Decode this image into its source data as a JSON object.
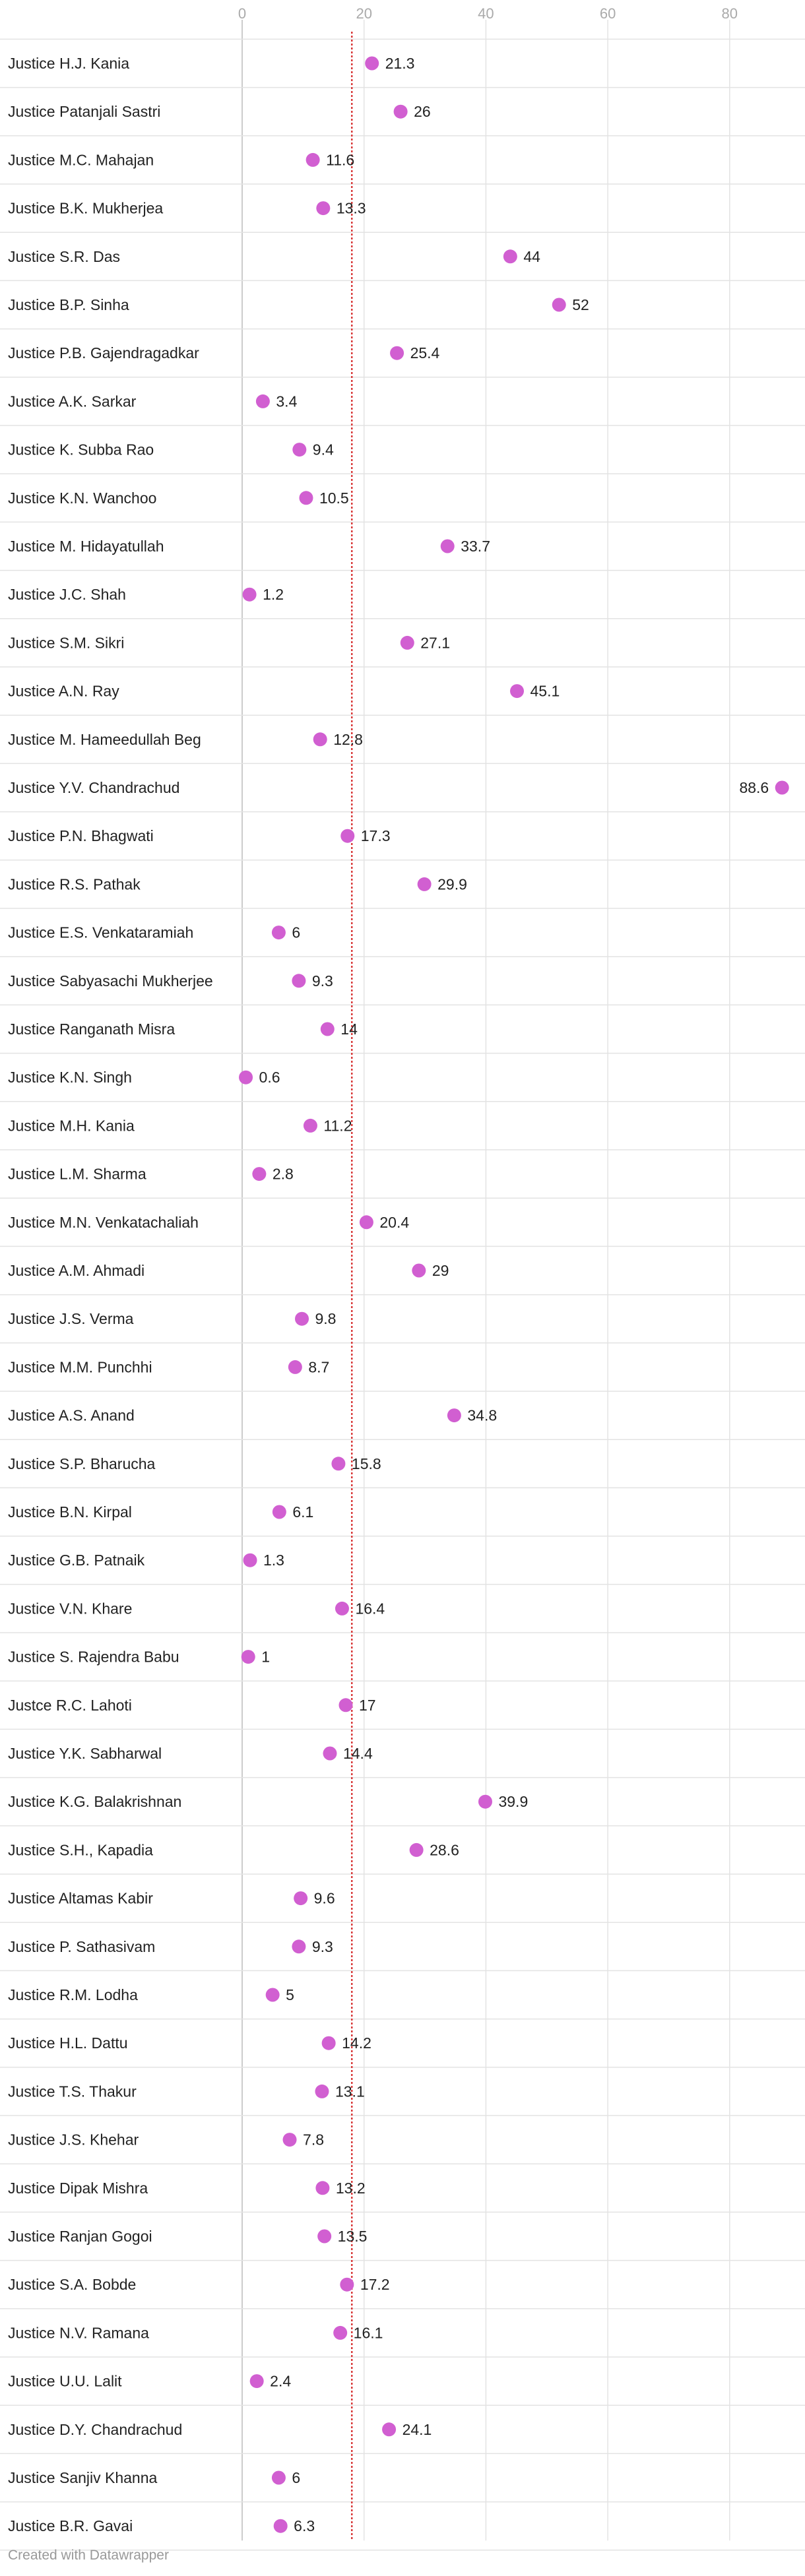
{
  "chart_data": {
    "type": "scatter",
    "title": "",
    "xlabel": "",
    "ylabel": "",
    "xlim": [
      0,
      90
    ],
    "x_ticks": [
      0,
      20,
      40,
      60,
      80
    ],
    "reference_line": 18,
    "grid": true,
    "categories": [
      "Justice H.J. Kania",
      "Justice Patanjali Sastri",
      "Justice M.C. Mahajan",
      "Justice B.K. Mukherjea",
      "Justice S.R. Das",
      "Justice B.P. Sinha",
      "Justice P.B. Gajendragadkar",
      "Justice A.K. Sarkar",
      "Justice K. Subba Rao",
      "Justice K.N. Wanchoo",
      "Justice M. Hidayatullah",
      "Justice J.C. Shah",
      "Justice S.M. Sikri",
      "Justice A.N. Ray",
      "Justice M. Hameedullah Beg",
      "Justice Y.V. Chandrachud",
      "Justice P.N. Bhagwati",
      "Justice R.S. Pathak",
      "Justice E.S. Venkataramiah",
      "Justice Sabyasachi Mukherjee",
      "Justice Ranganath Misra",
      "Justice K.N. Singh",
      "Justice M.H. Kania",
      "Justice L.M. Sharma",
      "Justice M.N. Venkatachaliah",
      "Justice A.M. Ahmadi",
      "Justice J.S. Verma",
      "Justice M.M. Punchhi",
      "Justice A.S. Anand",
      "Justice S.P. Bharucha",
      "Justice B.N. Kirpal",
      "Justice G.B. Patnaik",
      "Justice V.N. Khare",
      "Justice S. Rajendra Babu",
      "Justce R.C. Lahoti",
      "Justice Y.K. Sabharwal",
      "Justice K.G. Balakrishnan",
      "Justice S.H., Kapadia",
      "Justice Altamas Kabir",
      "Justice P. Sathasivam",
      "Justice R.M. Lodha",
      "Justice H.L. Dattu",
      "Justice T.S. Thakur",
      "Justice J.S. Khehar",
      "Justice Dipak Mishra",
      "Justice Ranjan Gogoi",
      "Justice S.A. Bobde",
      "Justice N.V. Ramana",
      "Justice U.U. Lalit",
      "Justice D.Y. Chandrachud",
      "Justice Sanjiv Khanna",
      "Justice B.R. Gavai"
    ],
    "values": [
      21.3,
      26,
      11.6,
      13.3,
      44,
      52,
      25.4,
      3.4,
      9.4,
      10.5,
      33.7,
      1.2,
      27.1,
      45.1,
      12.8,
      88.6,
      17.3,
      29.9,
      6,
      9.3,
      14,
      0.6,
      11.2,
      2.8,
      20.4,
      29,
      9.8,
      8.7,
      34.8,
      15.8,
      6.1,
      1.3,
      16.4,
      1,
      17,
      14.4,
      39.9,
      28.6,
      9.6,
      9.3,
      5,
      14.2,
      13.1,
      7.8,
      13.2,
      13.5,
      17.2,
      16.1,
      2.4,
      24.1,
      6,
      6.3
    ],
    "value_labels": [
      "21.3",
      "26",
      "11.6",
      "13.3",
      "44",
      "52",
      "25.4",
      "3.4",
      "9.4",
      "10.5",
      "33.7",
      "1.2",
      "27.1",
      "45.1",
      "12.8",
      "88.6",
      "17.3",
      "29.9",
      "6",
      "9.3",
      "14",
      "0.6",
      "11.2",
      "2.8",
      "20.4",
      "29",
      "9.8",
      "8.7",
      "34.8",
      "15.8",
      "6.1",
      "1.3",
      "16.4",
      "1",
      "17",
      "14.4",
      "39.9",
      "28.6",
      "9.6",
      "9.3",
      "5",
      "14.2",
      "13.1",
      "7.8",
      "13.2",
      "13.5",
      "17.2",
      "16.1",
      "2.4",
      "24.1",
      "6",
      "6.3"
    ],
    "colors": {
      "dot": "#d15fd1",
      "reference_line": "#d93a3a",
      "grid": "#e3e3e3",
      "zero_line": "#cccccc"
    }
  },
  "footer": {
    "credit": "Created with Datawrapper"
  }
}
